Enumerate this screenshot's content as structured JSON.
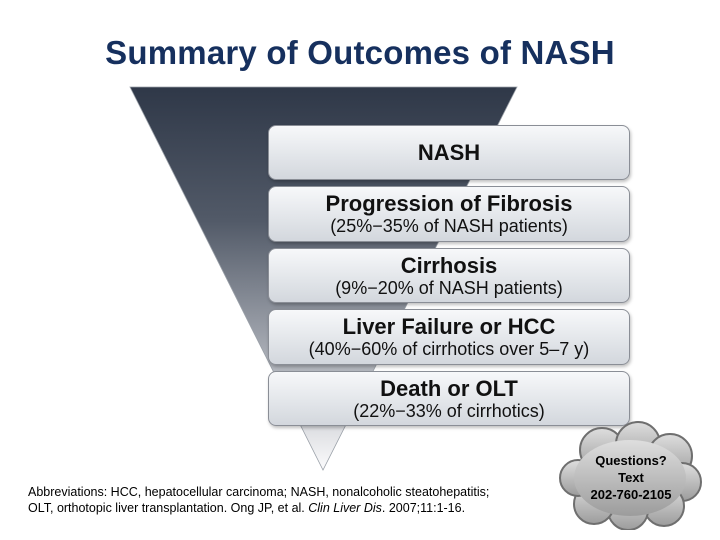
{
  "title": "Summary of Outcomes of NASH",
  "stages": [
    {
      "title": "NASH",
      "subtitle": ""
    },
    {
      "title": "Progression of Fibrosis",
      "subtitle": "(25%−35% of NASH patients)"
    },
    {
      "title": "Cirrhosis",
      "subtitle": "(9%−20% of NASH patients)"
    },
    {
      "title": "Liver Failure or HCC",
      "subtitle": "(40%−60% of cirrhotics over 5–7 y)"
    },
    {
      "title": "Death or OLT",
      "subtitle": "(22%−33% of cirrhotics)"
    }
  ],
  "footnote": {
    "line1": "Abbreviations: HCC, hepatocellular carcinoma; NASH, nonalcoholic steatohepatitis;",
    "line2_prefix": "OLT, orthotopic liver transplantation. Ong JP, et al. ",
    "journal": "Clin Liver Dis",
    "line2_suffix": ". 2007;11:1-16."
  },
  "questions": {
    "line1": "Questions?",
    "line2": "Text",
    "line3": "202-760-2105"
  },
  "colors": {
    "title": "#16305e",
    "funnel_top": "#2f3848",
    "funnel_bottom": "#ffffff"
  }
}
